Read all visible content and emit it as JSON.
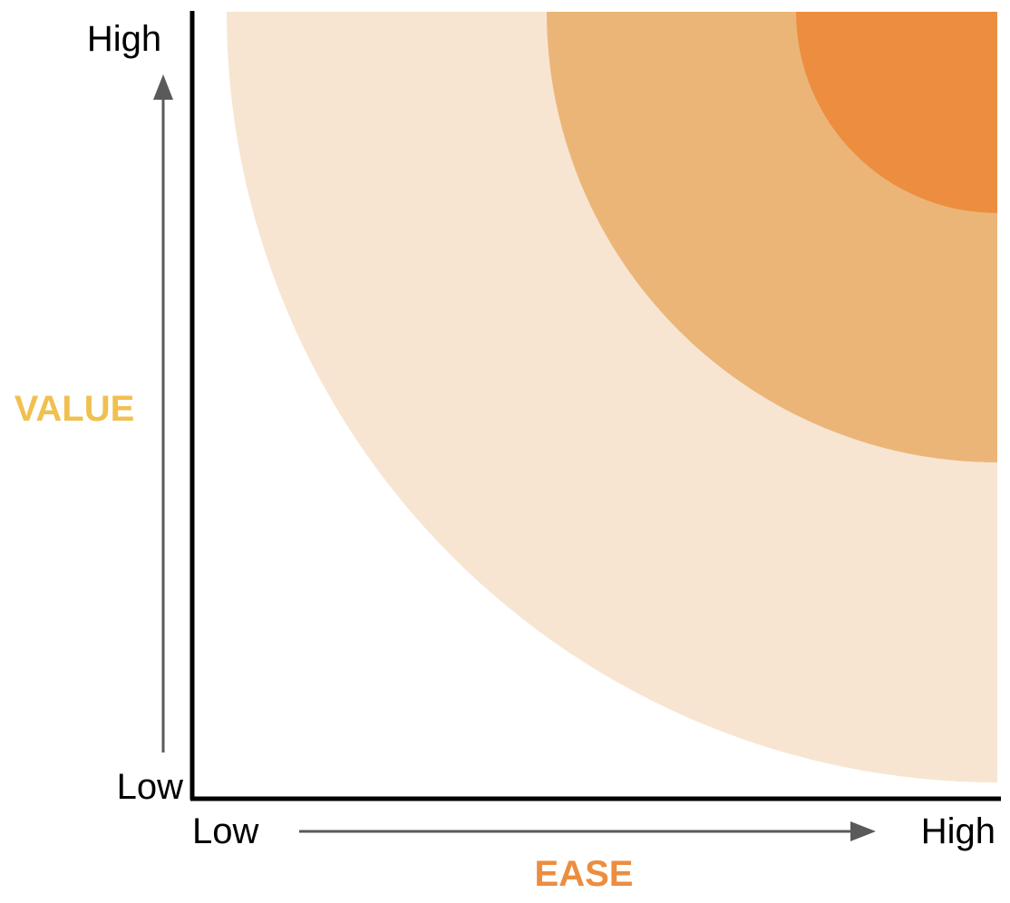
{
  "y_axis": {
    "title": "VALUE",
    "high_label": "High",
    "low_label": "Low",
    "title_color": "#F0C050"
  },
  "x_axis": {
    "title": "EASE",
    "low_label": "Low",
    "high_label": "High",
    "title_color": "#EC8D3F"
  },
  "bands": [
    {
      "level": "outer",
      "color": "#F7E5D2"
    },
    {
      "level": "middle",
      "color": "#ECB578"
    },
    {
      "level": "inner",
      "color": "#EC8D3F"
    }
  ],
  "axis_line_color": "#000000",
  "arrow_color": "#5A5A5A"
}
